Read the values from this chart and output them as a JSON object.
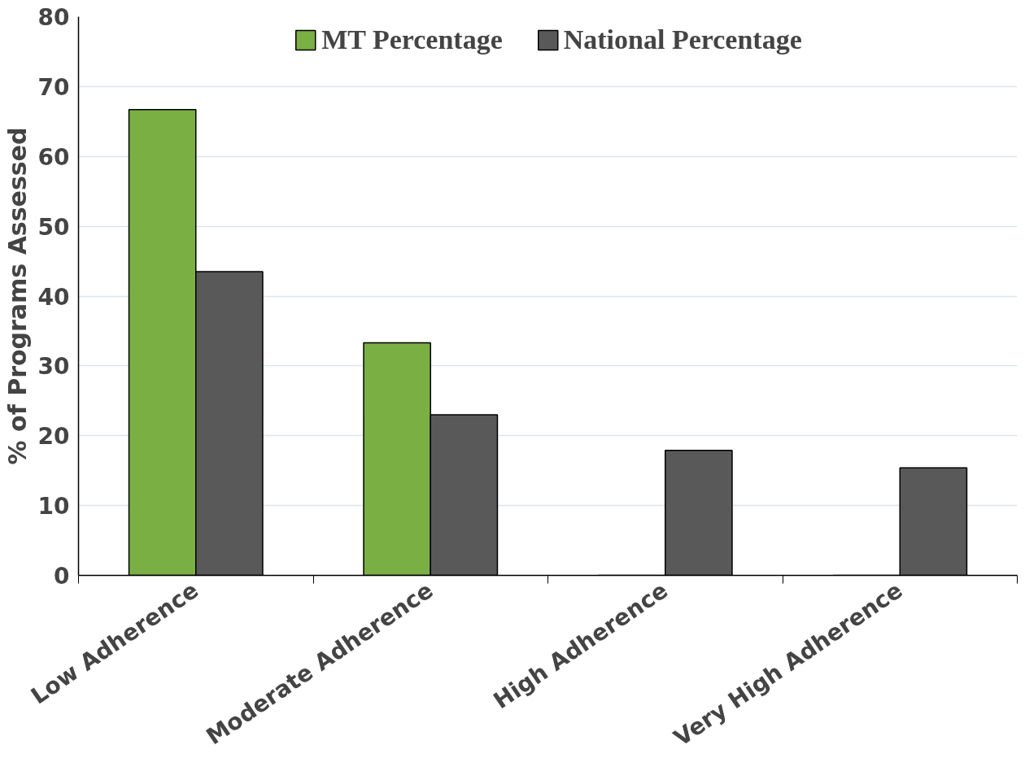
{
  "chart_data": {
    "type": "bar",
    "ylabel": "% of Programs Assessed",
    "categories": [
      "Low Adherence",
      "Moderate Adherence",
      "High Adherence",
      "Very High Adherence"
    ],
    "series": [
      {
        "name": "MT Percentage",
        "color": "#7aaf44",
        "values": [
          66.7,
          33.3,
          0,
          0
        ]
      },
      {
        "name": "National Percentage",
        "color": "#595959",
        "values": [
          43.5,
          23.0,
          17.9,
          15.4
        ]
      }
    ],
    "ylim": [
      0,
      80
    ],
    "yticks": [
      0,
      10,
      20,
      30,
      40,
      50,
      60,
      70,
      80
    ],
    "grid": "y",
    "legend": "top"
  }
}
